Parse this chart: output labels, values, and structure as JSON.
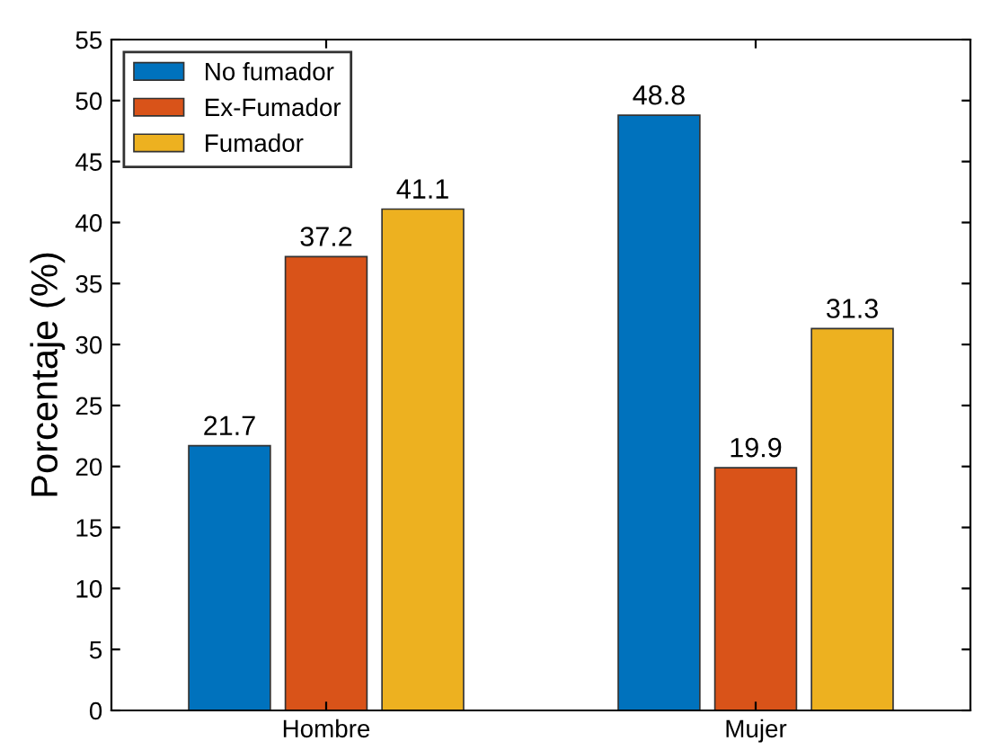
{
  "chart_data": {
    "type": "bar",
    "ylabel": "Porcentaje (%)",
    "categories": [
      "Hombre",
      "Mujer"
    ],
    "series": [
      {
        "name": "No fumador",
        "color": "#0072bd",
        "values": [
          21.7,
          48.8
        ]
      },
      {
        "name": "Ex-Fumador",
        "color": "#d95319",
        "values": [
          37.2,
          19.9
        ]
      },
      {
        "name": "Fumador",
        "color": "#edb120",
        "values": [
          41.1,
          31.3
        ]
      }
    ],
    "ylim": [
      0,
      55
    ],
    "yticks": [
      0,
      5,
      10,
      15,
      20,
      25,
      30,
      35,
      40,
      45,
      50,
      55
    ],
    "data_labels": true,
    "legend": "top left",
    "grid": false
  }
}
